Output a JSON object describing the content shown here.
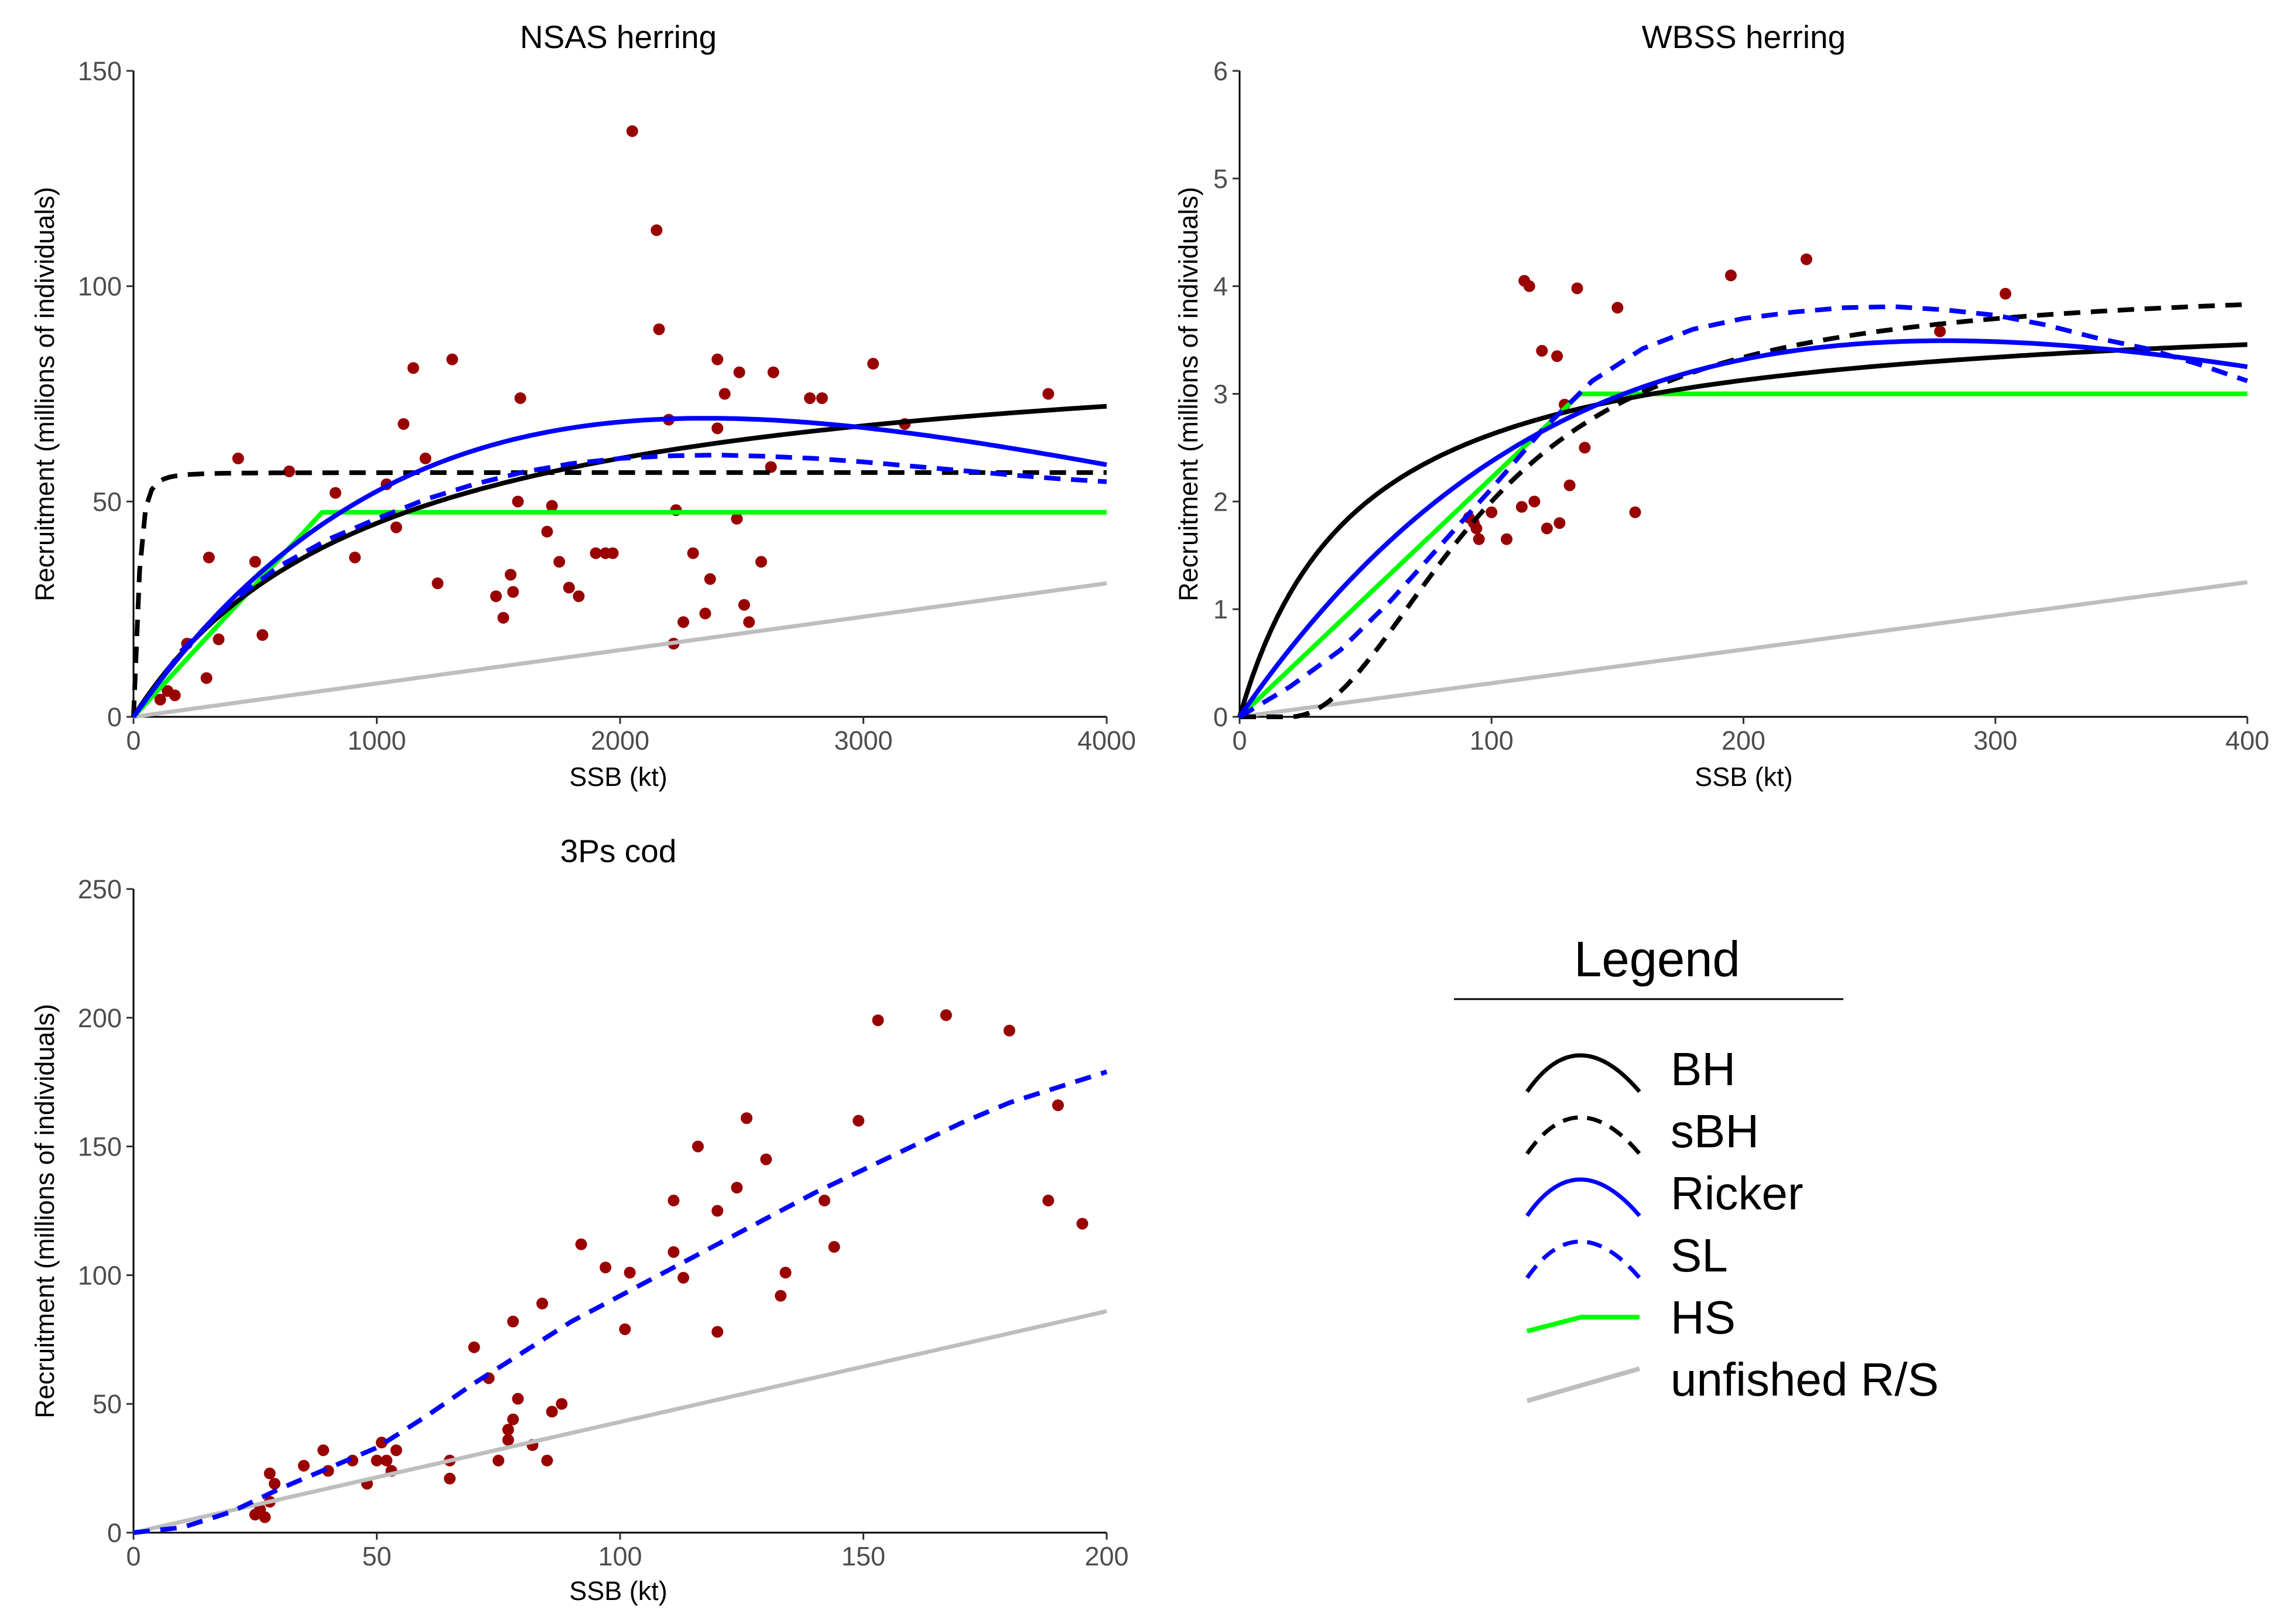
{
  "chart_data": [
    {
      "type": "scatter",
      "title": "NSAS herring",
      "xlabel": "SSB (kt)",
      "ylabel": "Recruitment (millions of individuals)",
      "xlim": [
        0,
        4000
      ],
      "ylim": [
        0,
        150
      ],
      "xticks": [
        "0",
        "1000",
        "2000",
        "3000",
        "4000"
      ],
      "yticks": [
        "0",
        "50",
        "100",
        "150"
      ],
      "points": [
        [
          110,
          4
        ],
        [
          140,
          6
        ],
        [
          170,
          5
        ],
        [
          220,
          17
        ],
        [
          300,
          9
        ],
        [
          310,
          37
        ],
        [
          350,
          18
        ],
        [
          430,
          60
        ],
        [
          500,
          36
        ],
        [
          530,
          19
        ],
        [
          640,
          57
        ],
        [
          830,
          52
        ],
        [
          910,
          37
        ],
        [
          1040,
          54
        ],
        [
          1080,
          44
        ],
        [
          1110,
          68
        ],
        [
          1150,
          81
        ],
        [
          1200,
          60
        ],
        [
          1250,
          31
        ],
        [
          1310,
          83
        ],
        [
          1490,
          28
        ],
        [
          1520,
          23
        ],
        [
          1550,
          33
        ],
        [
          1560,
          29
        ],
        [
          1580,
          50
        ],
        [
          1590,
          74
        ],
        [
          1700,
          43
        ],
        [
          1720,
          49
        ],
        [
          1750,
          36
        ],
        [
          1790,
          30
        ],
        [
          1830,
          28
        ],
        [
          1900,
          38
        ],
        [
          1940,
          38
        ],
        [
          1970,
          38
        ],
        [
          2050,
          136
        ],
        [
          2150,
          113
        ],
        [
          2160,
          90
        ],
        [
          2200,
          69
        ],
        [
          2220,
          17
        ],
        [
          2230,
          48
        ],
        [
          2260,
          22
        ],
        [
          2300,
          38
        ],
        [
          2350,
          24
        ],
        [
          2370,
          32
        ],
        [
          2400,
          67
        ],
        [
          2400,
          83
        ],
        [
          2430,
          75
        ],
        [
          2480,
          46
        ],
        [
          2490,
          80
        ],
        [
          2510,
          26
        ],
        [
          2530,
          22
        ],
        [
          2580,
          36
        ],
        [
          2620,
          58
        ],
        [
          2630,
          80
        ],
        [
          2780,
          74
        ],
        [
          2830,
          74
        ],
        [
          3040,
          82
        ],
        [
          3170,
          68
        ],
        [
          3760,
          75
        ]
      ],
      "series": [
        {
          "name": "BH",
          "model": "bh",
          "params": {
            "a": 0.0895,
            "b": 0.000991
          }
        },
        {
          "name": "sBH",
          "model": "sbh",
          "params": {
            "a": 0.135,
            "b": 0.00238
          }
        },
        {
          "name": "Ricker",
          "model": "ricker",
          "params": {
            "a": 0.0801,
            "b": 0.000425
          }
        },
        {
          "name": "SL",
          "model": "poly",
          "points": [
            [
              0,
              0
            ],
            [
              200,
              15.5
            ],
            [
              400,
              26.6
            ],
            [
              600,
              35
            ],
            [
              800,
              41.2
            ],
            [
              1000,
              46
            ],
            [
              1200,
              50.5
            ],
            [
              1400,
              54
            ],
            [
              1600,
              56.8
            ],
            [
              1800,
              58.8
            ],
            [
              2000,
              60
            ],
            [
              2200,
              60.6
            ],
            [
              2400,
              60.8
            ],
            [
              2600,
              60.5
            ],
            [
              2800,
              60
            ],
            [
              3000,
              59.2
            ],
            [
              3200,
              58.2
            ],
            [
              3400,
              57.2
            ],
            [
              3600,
              56.2
            ],
            [
              3800,
              55.3
            ],
            [
              4000,
              54.6
            ]
          ]
        },
        {
          "name": "HS",
          "model": "hs",
          "params": {
            "slope": 0.06125,
            "plateau": 47.5
          }
        },
        {
          "name": "unfished R/S",
          "model": "linear",
          "params": {
            "slope": 0.00775
          }
        }
      ]
    },
    {
      "type": "scatter",
      "title": "WBSS herring",
      "xlabel": "SSB (kt)",
      "ylabel": "Recruitment (millions of individuals)",
      "xlim": [
        0,
        400
      ],
      "ylim": [
        0,
        6
      ],
      "xticks": [
        "0",
        "100",
        "200",
        "300",
        "400"
      ],
      "yticks": [
        "0",
        "1",
        "2",
        "3",
        "4",
        "5",
        "6"
      ],
      "points": [
        [
          91,
          1.85
        ],
        [
          93,
          1.8
        ],
        [
          94,
          1.75
        ],
        [
          95,
          1.65
        ],
        [
          100,
          1.9
        ],
        [
          106,
          1.65
        ],
        [
          112,
          1.95
        ],
        [
          113,
          4.05
        ],
        [
          115,
          4.0
        ],
        [
          117,
          2.0
        ],
        [
          120,
          3.4
        ],
        [
          122,
          1.75
        ],
        [
          126,
          3.35
        ],
        [
          127,
          1.8
        ],
        [
          129,
          2.9
        ],
        [
          131,
          2.15
        ],
        [
          134,
          3.98
        ],
        [
          137,
          2.5
        ],
        [
          150,
          3.8
        ],
        [
          157,
          1.9
        ],
        [
          195,
          4.1
        ],
        [
          225,
          4.25
        ],
        [
          278,
          3.58
        ],
        [
          304,
          3.93
        ]
      ],
      "series": [
        {
          "name": "BH",
          "model": "bh",
          "params": {
            "a": 0.0816,
            "b": 0.0211
          }
        },
        {
          "name": "sBH",
          "model": "sbh_shift",
          "params": {
            "shift": 20,
            "K": 4.0,
            "h": 80
          }
        },
        {
          "name": "Ricker",
          "model": "ricker",
          "params": {
            "a": 0.0339,
            "b": 0.00357
          }
        },
        {
          "name": "SL",
          "model": "poly",
          "points": [
            [
              0,
              0
            ],
            [
              20,
              0.28
            ],
            [
              40,
              0.62
            ],
            [
              60,
              1.08
            ],
            [
              80,
              1.6
            ],
            [
              100,
              2.12
            ],
            [
              120,
              2.66
            ],
            [
              140,
              3.12
            ],
            [
              160,
              3.42
            ],
            [
              180,
              3.6
            ],
            [
              200,
              3.7
            ],
            [
              220,
              3.76
            ],
            [
              240,
              3.8
            ],
            [
              260,
              3.81
            ],
            [
              280,
              3.78
            ],
            [
              300,
              3.73
            ],
            [
              320,
              3.64
            ],
            [
              340,
              3.52
            ],
            [
              360,
              3.42
            ],
            [
              380,
              3.28
            ],
            [
              400,
              3.12
            ]
          ]
        },
        {
          "name": "HS",
          "model": "hs",
          "params": {
            "slope": 0.0222,
            "plateau": 3.0
          }
        },
        {
          "name": "unfished R/S",
          "model": "linear",
          "params": {
            "slope": 0.003125
          }
        }
      ]
    },
    {
      "type": "scatter",
      "title": "3Ps cod",
      "xlabel": "SSB (kt)",
      "ylabel": "Recruitment (millions of individuals)",
      "xlim": [
        0,
        200
      ],
      "ylim": [
        0,
        250
      ],
      "xticks": [
        "0",
        "50",
        "100",
        "150",
        "200"
      ],
      "yticks": [
        "0",
        "50",
        "100",
        "150",
        "200",
        "250"
      ],
      "points": [
        [
          25,
          7
        ],
        [
          26,
          9
        ],
        [
          27,
          6
        ],
        [
          28,
          12
        ],
        [
          28,
          23
        ],
        [
          29,
          19
        ],
        [
          35,
          26
        ],
        [
          39,
          32
        ],
        [
          40,
          24
        ],
        [
          45,
          28
        ],
        [
          48,
          19
        ],
        [
          50,
          28
        ],
        [
          51,
          35
        ],
        [
          52,
          28
        ],
        [
          53,
          24
        ],
        [
          54,
          32
        ],
        [
          65,
          28
        ],
        [
          65,
          21
        ],
        [
          70,
          72
        ],
        [
          73,
          60
        ],
        [
          75,
          28
        ],
        [
          77,
          40
        ],
        [
          77,
          36
        ],
        [
          78,
          82
        ],
        [
          78,
          44
        ],
        [
          79,
          52
        ],
        [
          82,
          34
        ],
        [
          84,
          89
        ],
        [
          85,
          28
        ],
        [
          86,
          47
        ],
        [
          88,
          50
        ],
        [
          92,
          112
        ],
        [
          97,
          103
        ],
        [
          101,
          79
        ],
        [
          102,
          101
        ],
        [
          111,
          109
        ],
        [
          111,
          129
        ],
        [
          113,
          99
        ],
        [
          116,
          150
        ],
        [
          120,
          125
        ],
        [
          120,
          78
        ],
        [
          124,
          134
        ],
        [
          126,
          161
        ],
        [
          130,
          145
        ],
        [
          133,
          92
        ],
        [
          134,
          101
        ],
        [
          142,
          129
        ],
        [
          144,
          111
        ],
        [
          149,
          160
        ],
        [
          153,
          199
        ],
        [
          167,
          201
        ],
        [
          180,
          195
        ],
        [
          188,
          129
        ],
        [
          190,
          166
        ],
        [
          195,
          120
        ]
      ],
      "series": [
        {
          "name": "SL",
          "model": "poly",
          "points": [
            [
              0,
              0
            ],
            [
              10,
              2
            ],
            [
              20,
              8
            ],
            [
              30,
              17
            ],
            [
              40,
              25
            ],
            [
              50,
              33
            ],
            [
              60,
              45
            ],
            [
              70,
              58
            ],
            [
              80,
              70
            ],
            [
              90,
              82
            ],
            [
              100,
              92
            ],
            [
              110,
              102
            ],
            [
              120,
              112
            ],
            [
              130,
              122
            ],
            [
              140,
              132
            ],
            [
              150,
              141
            ],
            [
              160,
              150
            ],
            [
              170,
              159
            ],
            [
              180,
              167
            ],
            [
              190,
              173
            ],
            [
              200,
              179
            ]
          ]
        },
        {
          "name": "unfished R/S",
          "model": "linear",
          "params": {
            "slope": 0.43
          }
        }
      ]
    }
  ],
  "legend": {
    "title": "Legend",
    "items": [
      {
        "label": "BH",
        "color": "#000000",
        "style": "solid"
      },
      {
        "label": "sBH",
        "color": "#000000",
        "style": "dashed"
      },
      {
        "label": "Ricker",
        "color": "#0000ff",
        "style": "solid"
      },
      {
        "label": "SL",
        "color": "#0000ff",
        "style": "dashed"
      },
      {
        "label": "HS",
        "color": "#00ff00",
        "style": "solid-line"
      },
      {
        "label": "unfished R/S",
        "color": "#bebebe",
        "style": "diagonal"
      }
    ]
  },
  "colors": {
    "points": "#990000",
    "BH": "#000000",
    "sBH": "#000000",
    "Ricker": "#0000ff",
    "SL": "#0000ff",
    "HS": "#00ff00",
    "unfished": "#bebebe"
  }
}
